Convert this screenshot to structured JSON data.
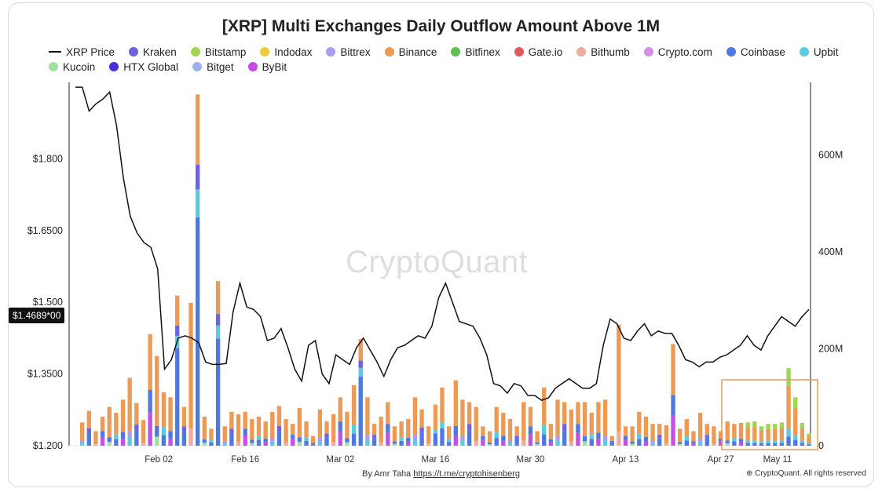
{
  "chart_data": {
    "type": "bar",
    "title": "[XRP] Multi Exchanges Daily Outflow Amount Above 1M",
    "legend": [
      {
        "name": "XRP Price",
        "kind": "line",
        "color": "#111111"
      },
      {
        "name": "Kraken",
        "color": "#6e63e6"
      },
      {
        "name": "Bitstamp",
        "color": "#9fd64f"
      },
      {
        "name": "Indodax",
        "color": "#f0c93f"
      },
      {
        "name": "Bittrex",
        "color": "#a99cf2"
      },
      {
        "name": "Binance",
        "color": "#ec9a55"
      },
      {
        "name": "Bitfinex",
        "color": "#5cbf4f"
      },
      {
        "name": "Gate.io",
        "color": "#e15959"
      },
      {
        "name": "Bithumb",
        "color": "#f0aa9e"
      },
      {
        "name": "Crypto.com",
        "color": "#d58ee8"
      },
      {
        "name": "Coinbase",
        "color": "#4f78e0"
      },
      {
        "name": "Upbit",
        "color": "#5ccbe0"
      },
      {
        "name": "Kucoin",
        "color": "#9fe0a5"
      },
      {
        "name": "HTX Global",
        "color": "#4b2fd8"
      },
      {
        "name": "Bitget",
        "color": "#9fb0ee"
      },
      {
        "name": "ByBit",
        "color": "#c44fe6"
      }
    ],
    "x_ticks": [
      "Feb 02",
      "Feb 16",
      "Mar 02",
      "Mar 16",
      "Mar 30",
      "Apr 13",
      "Apr 27",
      "May 11"
    ],
    "y_left": {
      "ticks": [
        "$1.200",
        "$1.3500",
        "$1.500",
        "$1.6500",
        "$1.800"
      ],
      "values": [
        1.2,
        1.35,
        1.5,
        1.65,
        1.8
      ],
      "range": [
        1.2,
        1.96
      ]
    },
    "y_right": {
      "ticks": [
        "0",
        "200M",
        "400M",
        "600M"
      ],
      "values": [
        0,
        200,
        400,
        600
      ],
      "range": [
        0,
        750
      ]
    },
    "current_price_label": "$1.4689*00",
    "price": [
      1.95,
      1.95,
      1.9,
      1.915,
      1.925,
      1.94,
      1.87,
      1.76,
      1.68,
      1.645,
      1.625,
      1.615,
      1.57,
      1.36,
      1.38,
      1.425,
      1.43,
      1.425,
      1.415,
      1.375,
      1.37,
      1.37,
      1.372,
      1.48,
      1.54,
      1.49,
      1.485,
      1.47,
      1.42,
      1.425,
      1.445,
      1.405,
      1.36,
      1.335,
      1.41,
      1.42,
      1.35,
      1.33,
      1.39,
      1.38,
      1.37,
      1.405,
      1.425,
      1.4,
      1.375,
      1.345,
      1.38,
      1.405,
      1.41,
      1.42,
      1.43,
      1.425,
      1.45,
      1.51,
      1.54,
      1.5,
      1.46,
      1.455,
      1.45,
      1.425,
      1.39,
      1.33,
      1.325,
      1.31,
      1.33,
      1.325,
      1.305,
      1.305,
      1.295,
      1.3,
      1.32,
      1.33,
      1.34,
      1.33,
      1.32,
      1.32,
      1.33,
      1.41,
      1.465,
      1.455,
      1.425,
      1.42,
      1.44,
      1.455,
      1.43,
      1.44,
      1.435,
      1.435,
      1.41,
      1.38,
      1.375,
      1.365,
      1.375,
      1.375,
      1.385,
      1.39,
      1.4,
      1.41,
      1.43,
      1.41,
      1.4,
      1.43,
      1.45,
      1.47,
      1.46,
      1.45,
      1.47,
      1.485
    ],
    "outflow_M": [
      0,
      48,
      72,
      30,
      60,
      80,
      68,
      95,
      140,
      88,
      53,
      230,
      185,
      110,
      100,
      310,
      80,
      295,
      725,
      60,
      35,
      340,
      40,
      70,
      65,
      70,
      55,
      60,
      50,
      70,
      82,
      55,
      45,
      78,
      50,
      20,
      75,
      50,
      65,
      100,
      70,
      125,
      220,
      100,
      45,
      60,
      90,
      40,
      50,
      55,
      100,
      75,
      40,
      85,
      120,
      40,
      135,
      95,
      90,
      80,
      40,
      30,
      80,
      68,
      55,
      40,
      90,
      80,
      30,
      120,
      45,
      95,
      90,
      75,
      90,
      90,
      68,
      90,
      95,
      20,
      250,
      40,
      40,
      70,
      60,
      45,
      45,
      42,
      210,
      35,
      55,
      30,
      68,
      45,
      40,
      30,
      50,
      45,
      47,
      48,
      50,
      40,
      45,
      45,
      48,
      160,
      100,
      47,
      25
    ],
    "annotation": "highlighted box (recent period)"
  },
  "watermark": "CryptoQuant",
  "byline_prefix": "By Amr Taha ",
  "byline_link": "https://t.me/cryptohisenberg",
  "copyright": "⊕ CryptoQuant. All rights reserved"
}
